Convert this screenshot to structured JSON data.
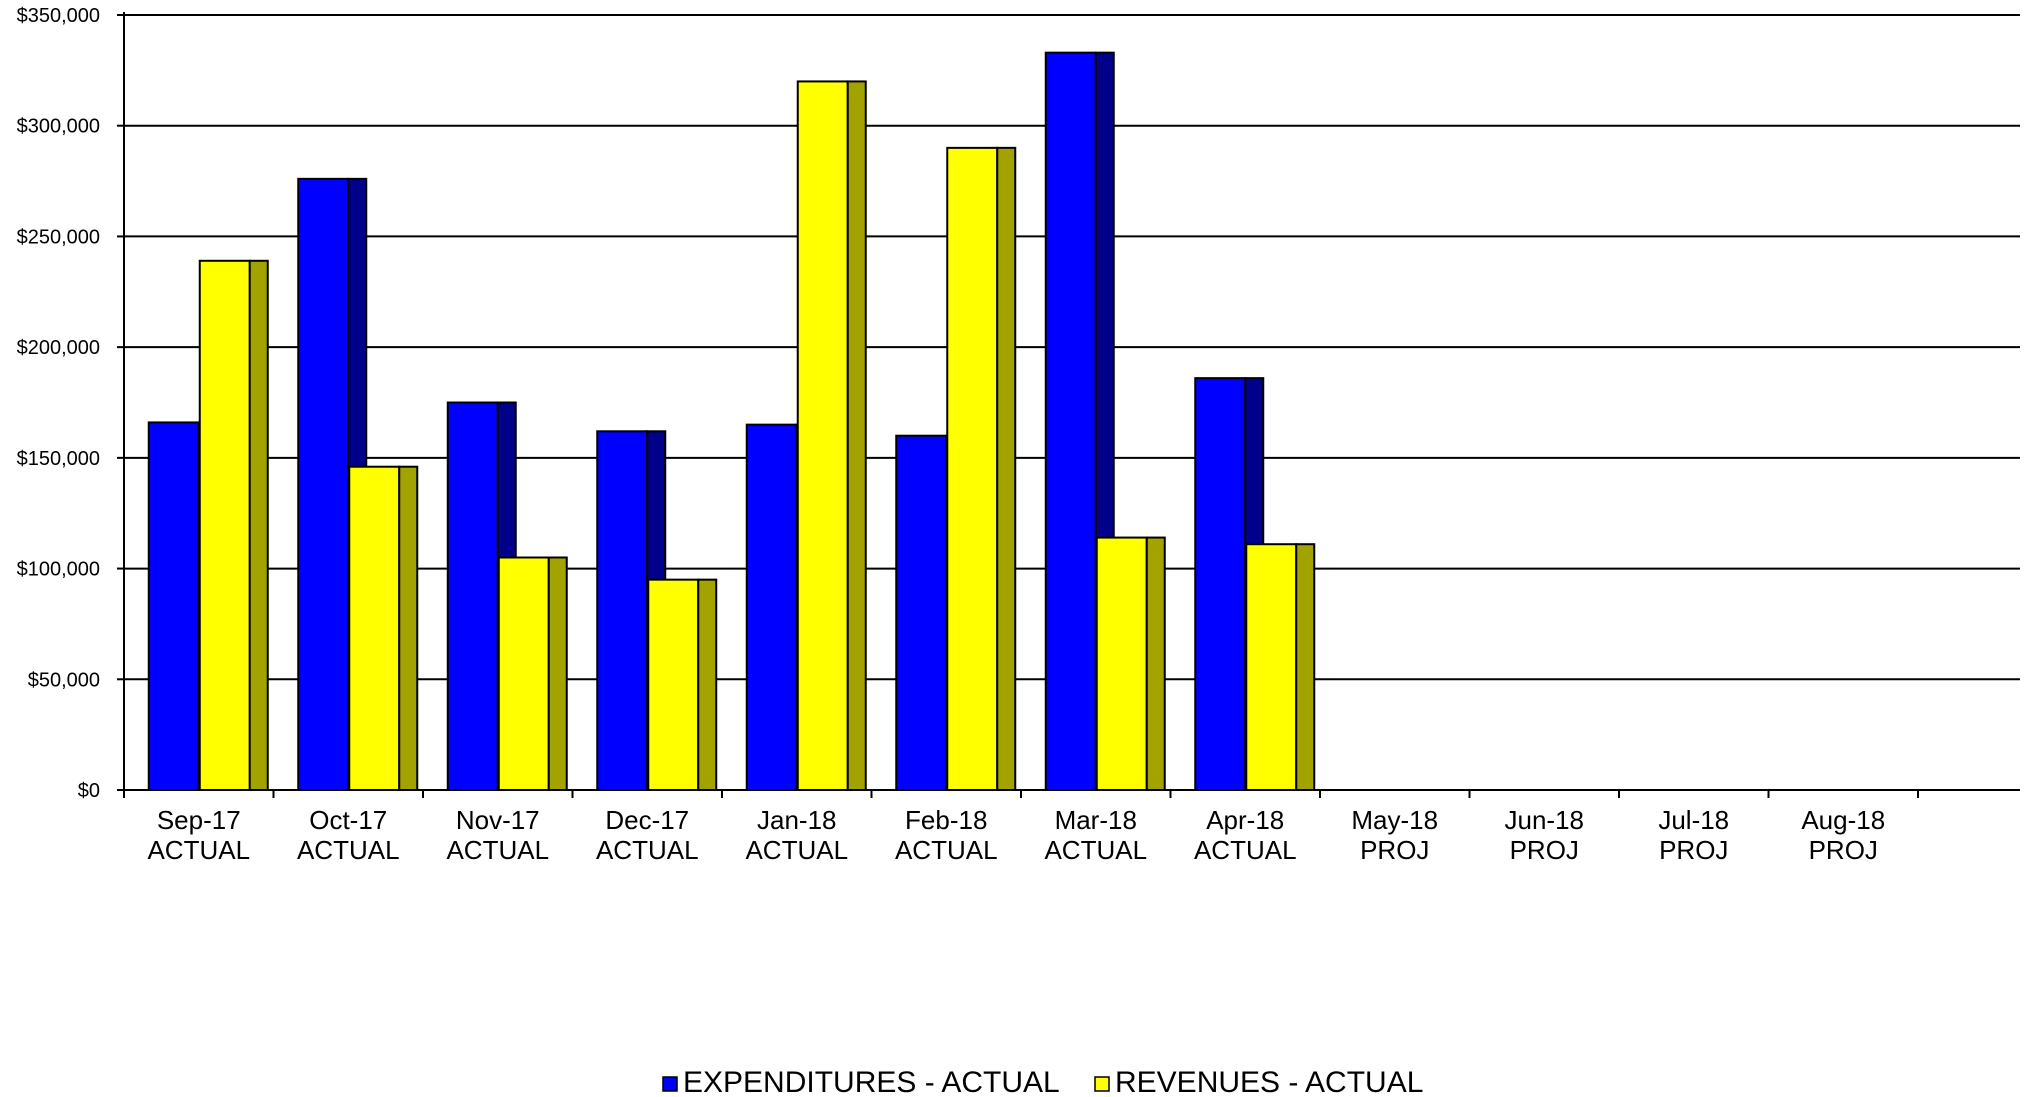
{
  "chart_data": {
    "type": "bar",
    "categories": [
      [
        "Sep-17",
        "ACTUAL"
      ],
      [
        "Oct-17",
        "ACTUAL"
      ],
      [
        "Nov-17",
        "ACTUAL"
      ],
      [
        "Dec-17",
        "ACTUAL"
      ],
      [
        "Jan-18",
        "ACTUAL"
      ],
      [
        "Feb-18",
        "ACTUAL"
      ],
      [
        "Mar-18",
        "ACTUAL"
      ],
      [
        "Apr-18",
        "ACTUAL"
      ],
      [
        "May-18",
        "PROJ"
      ],
      [
        "Jun-18",
        "PROJ"
      ],
      [
        "Jul-18",
        "PROJ"
      ],
      [
        "Aug-18",
        "PROJ"
      ]
    ],
    "series": [
      {
        "name": "EXPENDITURES - ACTUAL",
        "color": "#0000ff",
        "depth_color": "#00008b",
        "values": [
          166000,
          276000,
          175000,
          162000,
          165000,
          160000,
          333000,
          186000,
          null,
          null,
          null,
          null
        ]
      },
      {
        "name": "REVENUES - ACTUAL",
        "color": "#ffff00",
        "depth_color": "#a3a300",
        "values": [
          239000,
          146000,
          105000,
          95000,
          320000,
          290000,
          114000,
          111000,
          null,
          null,
          null,
          null
        ]
      }
    ],
    "title": "",
    "xlabel": "",
    "ylabel": "",
    "ylim": [
      0,
      350000
    ],
    "yticks": [
      0,
      50000,
      100000,
      150000,
      200000,
      250000,
      300000,
      350000
    ],
    "ytick_labels": [
      "$0",
      "$50,000",
      "$100,000",
      "$150,000",
      "$200,000",
      "$250,000",
      "$300,000",
      "$350,000"
    ],
    "grid": true,
    "legend_position": "bottom-center"
  }
}
